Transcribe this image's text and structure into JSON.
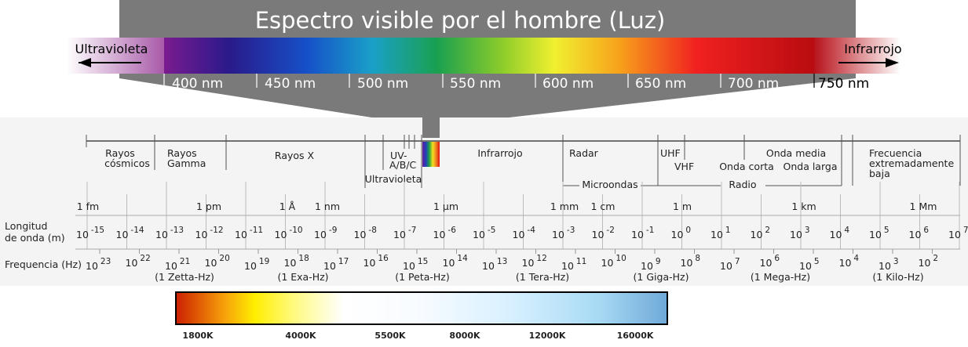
{
  "visible": {
    "title": "Espectro visible por el hombre (Luz)",
    "left_label": "Ultravioleta",
    "right_label": "Infrarrojo",
    "ticks": [
      "400 nm",
      "450 nm",
      "500 nm",
      "550 nm",
      "600 nm",
      "650 nm",
      "700 nm",
      "750 nm"
    ]
  },
  "bands": {
    "top": [
      {
        "id": "cosmic",
        "lines": [
          "Rayos",
          "cósmicos"
        ]
      },
      {
        "id": "gamma",
        "lines": [
          "Rayos",
          "Gamma"
        ]
      },
      {
        "id": "xray",
        "lines": [
          "Rayos X"
        ]
      },
      {
        "id": "uvabc",
        "lines": [
          "UV-",
          "A/B/C"
        ]
      },
      {
        "id": "infrared",
        "lines": [
          "Infrarrojo"
        ]
      },
      {
        "id": "radar",
        "lines": [
          "Radar"
        ]
      },
      {
        "id": "uhf",
        "lines": [
          "UHF"
        ]
      },
      {
        "id": "vhf",
        "lines": [
          "VHF"
        ]
      },
      {
        "id": "onda-corta",
        "lines": [
          "Onda corta"
        ]
      },
      {
        "id": "onda-media",
        "lines": [
          "Onda media"
        ]
      },
      {
        "id": "onda-larga",
        "lines": [
          "Onda larga"
        ]
      },
      {
        "id": "elf",
        "lines": [
          "Frecuencia",
          "extremadamente",
          "baja"
        ]
      }
    ],
    "bottom": [
      {
        "id": "ultravioleta",
        "text": "Ultravioleta"
      },
      {
        "id": "microondas",
        "text": "Microondas"
      },
      {
        "id": "radio",
        "text": "Radio"
      }
    ]
  },
  "length_units": [
    "1 fm",
    "1 pm",
    "1 Å",
    "1 nm",
    "1 µm",
    "1 mm",
    "1 cm",
    "1 m",
    "1 km",
    "1 Mm"
  ],
  "wavelength": {
    "label_lines": [
      "Longitud",
      "de onda (m)"
    ],
    "exponents": [
      "-15",
      "-14",
      "-13",
      "-12",
      "-11",
      "-10",
      "-9",
      "-8",
      "-7",
      "-6",
      "-5",
      "-4",
      "-3",
      "-2",
      "-1",
      "0",
      "1",
      "2",
      "3",
      "4",
      "5",
      "6",
      "7"
    ]
  },
  "frequency": {
    "label": "Frequencia (Hz)",
    "exponents": [
      "23",
      "22",
      "21",
      "20",
      "19",
      "18",
      "17",
      "16",
      "15",
      "14",
      "13",
      "12",
      "11",
      "10",
      "9",
      "8",
      "7",
      "6",
      "5",
      "4",
      "3",
      "2"
    ],
    "named": [
      "(1 Zetta-Hz)",
      "(1 Exa-Hz)",
      "(1 Peta-Hz)",
      "(1 Tera-Hz)",
      "(1 Giga-Hz)",
      "(1 Mega-Hz)",
      "(1 Kilo-Hz)"
    ]
  },
  "temperature": {
    "labels": [
      "1800K",
      "4000K",
      "5500K",
      "8000K",
      "12000K",
      "16000K"
    ]
  }
}
